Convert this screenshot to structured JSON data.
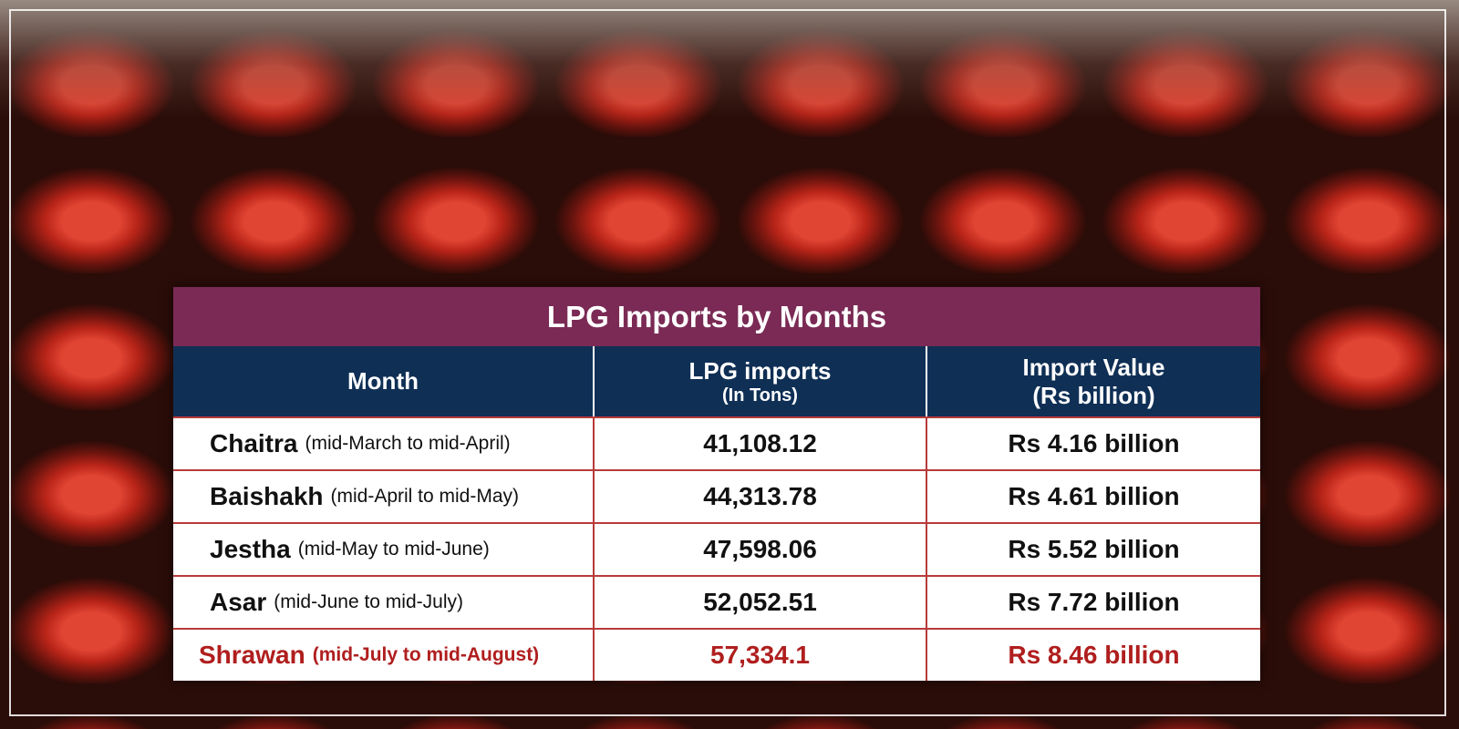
{
  "title": "LPG Imports by Months",
  "header": {
    "month": "Month",
    "imports": "LPG imports",
    "imports_unit": "(In Tons)",
    "value": "Import Value",
    "value_unit": "(Rs billion)"
  },
  "rows": [
    {
      "month": "Chaitra",
      "period": "(mid-March to mid-April)",
      "imports": "41,108.12",
      "value": "Rs 4.16 billion"
    },
    {
      "month": "Baishakh",
      "period": "(mid-April to mid-May)",
      "imports": "44,313.78",
      "value": "Rs 4.61 billion"
    },
    {
      "month": "Jestha",
      "period": "(mid-May to mid-June)",
      "imports": "47,598.06",
      "value": "Rs 5.52 billion"
    },
    {
      "month": "Asar",
      "period": "(mid-June to mid-July)",
      "imports": "52,052.51",
      "value": "Rs 7.72 billion"
    },
    {
      "month": "Shrawan",
      "period": "(mid-July to mid-August)",
      "imports": "57,334.1",
      "value": "Rs 8.46 billion"
    }
  ]
}
